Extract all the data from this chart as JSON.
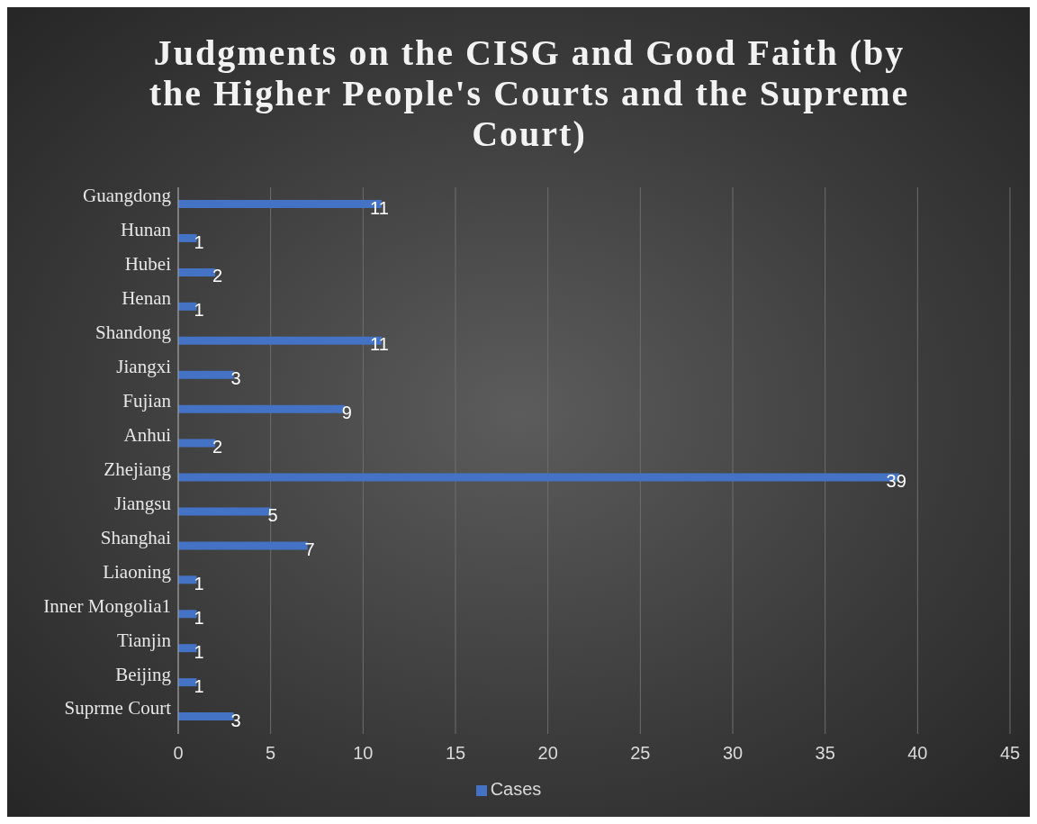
{
  "chart_data": {
    "type": "bar",
    "orientation": "horizontal",
    "title": "Judgments on the CISG and Good Faith (by the Higher People's Courts and the Supreme Court)",
    "categories": [
      "Guangdong",
      "Hunan",
      "Hubei",
      "Henan",
      "Shandong",
      "Jiangxi",
      "Fujian",
      "Anhui",
      "Zhejiang",
      "Jiangsu",
      "Shanghai",
      "Liaoning",
      "Inner Mongolia1",
      "Tianjin",
      "Beijing",
      "Suprme Court"
    ],
    "series": [
      {
        "name": "Cases",
        "color": "#4472c4",
        "values": [
          11,
          1,
          2,
          1,
          11,
          3,
          9,
          2,
          39,
          5,
          7,
          1,
          1,
          1,
          1,
          3
        ]
      }
    ],
    "xlim": [
      0,
      45
    ],
    "xticks": [
      0,
      5,
      10,
      15,
      20,
      25,
      30,
      35,
      40,
      45
    ],
    "grid": "x",
    "legend": "bottom",
    "data_labels": true
  }
}
